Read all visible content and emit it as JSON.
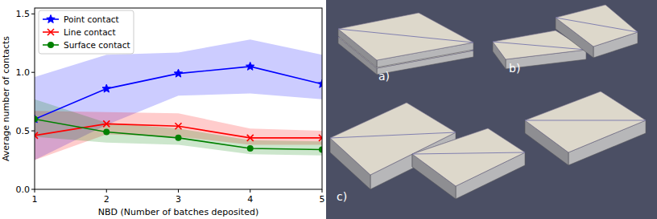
{
  "chart_data": {
    "type": "line",
    "x_label": "NBD (Number of batches deposited)",
    "y_label": "Average number of contacts",
    "x": [
      1,
      2,
      3,
      4,
      5
    ],
    "xlim": [
      1,
      5
    ],
    "xticks": [
      1,
      2,
      3,
      4,
      5
    ],
    "ylim": [
      0,
      1.55
    ],
    "yticks": [
      {
        "value": 0,
        "label": "0.0"
      },
      {
        "value": 0.5,
        "label": "0.5"
      },
      {
        "value": 1,
        "label": "1.0"
      },
      {
        "value": 1.5,
        "label": "1.5"
      }
    ],
    "grid": false,
    "legend": "upper left",
    "series": [
      {
        "name": "Point contact",
        "color": "#0000ff",
        "marker": "star",
        "values": [
          0.6,
          0.86,
          0.99,
          1.05,
          0.9
        ],
        "lower": [
          0.25,
          0.55,
          0.8,
          0.82,
          0.77
        ],
        "upper": [
          0.96,
          1.15,
          1.17,
          1.28,
          1.15
        ]
      },
      {
        "name": "Line contact",
        "color": "#ff0000",
        "marker": "x",
        "values": [
          0.46,
          0.56,
          0.54,
          0.44,
          0.44
        ],
        "lower": [
          0.25,
          0.47,
          0.45,
          0.38,
          0.38
        ],
        "upper": [
          0.67,
          0.66,
          0.65,
          0.52,
          0.5
        ]
      },
      {
        "name": "Surface contact",
        "color": "#008000",
        "marker": "circle",
        "values": [
          0.6,
          0.49,
          0.44,
          0.35,
          0.34
        ],
        "lower": [
          0.45,
          0.4,
          0.38,
          0.3,
          0.29
        ],
        "upper": [
          0.77,
          0.57,
          0.52,
          0.42,
          0.41
        ]
      }
    ]
  },
  "illustration": {
    "labels": [
      "a)",
      "b)",
      "c)"
    ]
  }
}
